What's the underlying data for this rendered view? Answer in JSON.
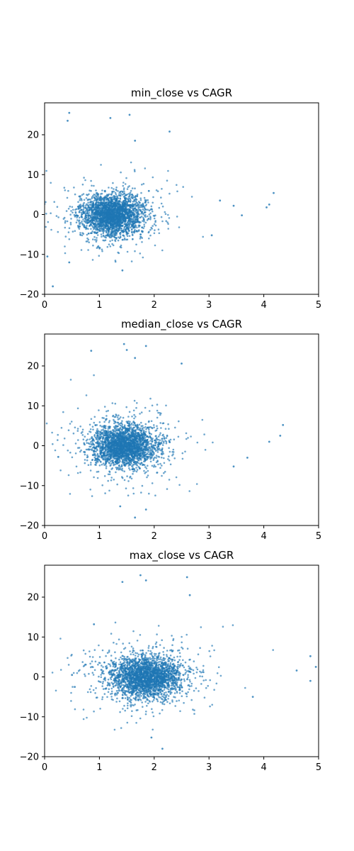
{
  "chart_data": [
    {
      "type": "scatter",
      "title": "min_close vs CAGR",
      "xlim": [
        0,
        5
      ],
      "ylim": [
        -20,
        28
      ],
      "xticks": [
        0,
        1,
        2,
        3,
        4,
        5
      ],
      "yticks": [
        -20,
        -10,
        0,
        10,
        20
      ],
      "color": "#1f77b4",
      "cluster": {
        "x_center": 1.25,
        "y_center": 0,
        "x_spread": 0.28,
        "y_spread": 2.6
      },
      "outliers": [
        [
          0.45,
          25.5
        ],
        [
          0.42,
          23.5
        ],
        [
          1.2,
          24.2
        ],
        [
          1.55,
          25.0
        ],
        [
          1.65,
          18.5
        ],
        [
          2.28,
          20.8
        ],
        [
          4.1,
          2.5
        ],
        [
          4.18,
          5.4
        ],
        [
          4.05,
          1.8
        ],
        [
          3.6,
          -0.2
        ],
        [
          3.45,
          2.2
        ],
        [
          0.15,
          -18.0
        ],
        [
          0.05,
          -10.5
        ],
        [
          0.45,
          -12.0
        ],
        [
          1.42,
          -14.0
        ],
        [
          3.05,
          -5.2
        ],
        [
          3.2,
          3.5
        ]
      ]
    },
    {
      "type": "scatter",
      "title": "median_close vs CAGR",
      "xlim": [
        0,
        5
      ],
      "ylim": [
        -20,
        28
      ],
      "xticks": [
        0,
        1,
        2,
        3,
        4,
        5
      ],
      "yticks": [
        -20,
        -10,
        0,
        10,
        20
      ],
      "color": "#1f77b4",
      "cluster": {
        "x_center": 1.45,
        "y_center": 0,
        "x_spread": 0.3,
        "y_spread": 2.7
      },
      "outliers": [
        [
          0.85,
          23.8
        ],
        [
          1.45,
          25.5
        ],
        [
          1.5,
          24.0
        ],
        [
          1.85,
          25.0
        ],
        [
          2.5,
          20.6
        ],
        [
          1.65,
          22.0
        ],
        [
          4.35,
          5.2
        ],
        [
          4.3,
          2.5
        ],
        [
          4.1,
          1.0
        ],
        [
          3.7,
          -3.0
        ],
        [
          3.45,
          -5.2
        ],
        [
          0.25,
          -2.8
        ],
        [
          1.65,
          -18.0
        ],
        [
          1.38,
          -15.2
        ],
        [
          1.85,
          -16.0
        ]
      ]
    },
    {
      "type": "scatter",
      "title": "max_close vs CAGR",
      "xlim": [
        0,
        5
      ],
      "ylim": [
        -20,
        28
      ],
      "xticks": [
        0,
        1,
        2,
        3,
        4,
        5
      ],
      "yticks": [
        -20,
        -10,
        0,
        10,
        20
      ],
      "color": "#1f77b4",
      "cluster": {
        "x_center": 1.85,
        "y_center": 0,
        "x_spread": 0.33,
        "y_spread": 2.7
      },
      "outliers": [
        [
          1.75,
          25.5
        ],
        [
          1.85,
          24.2
        ],
        [
          1.42,
          23.8
        ],
        [
          2.6,
          25.0
        ],
        [
          2.65,
          20.5
        ],
        [
          0.9,
          13.2
        ],
        [
          4.85,
          5.2
        ],
        [
          4.95,
          2.5
        ],
        [
          4.85,
          -1.0
        ],
        [
          4.6,
          1.6
        ],
        [
          3.8,
          -5.0
        ],
        [
          0.5,
          0.5
        ],
        [
          0.55,
          -2.5
        ],
        [
          2.15,
          -18.0
        ],
        [
          1.95,
          -15.2
        ]
      ]
    }
  ]
}
